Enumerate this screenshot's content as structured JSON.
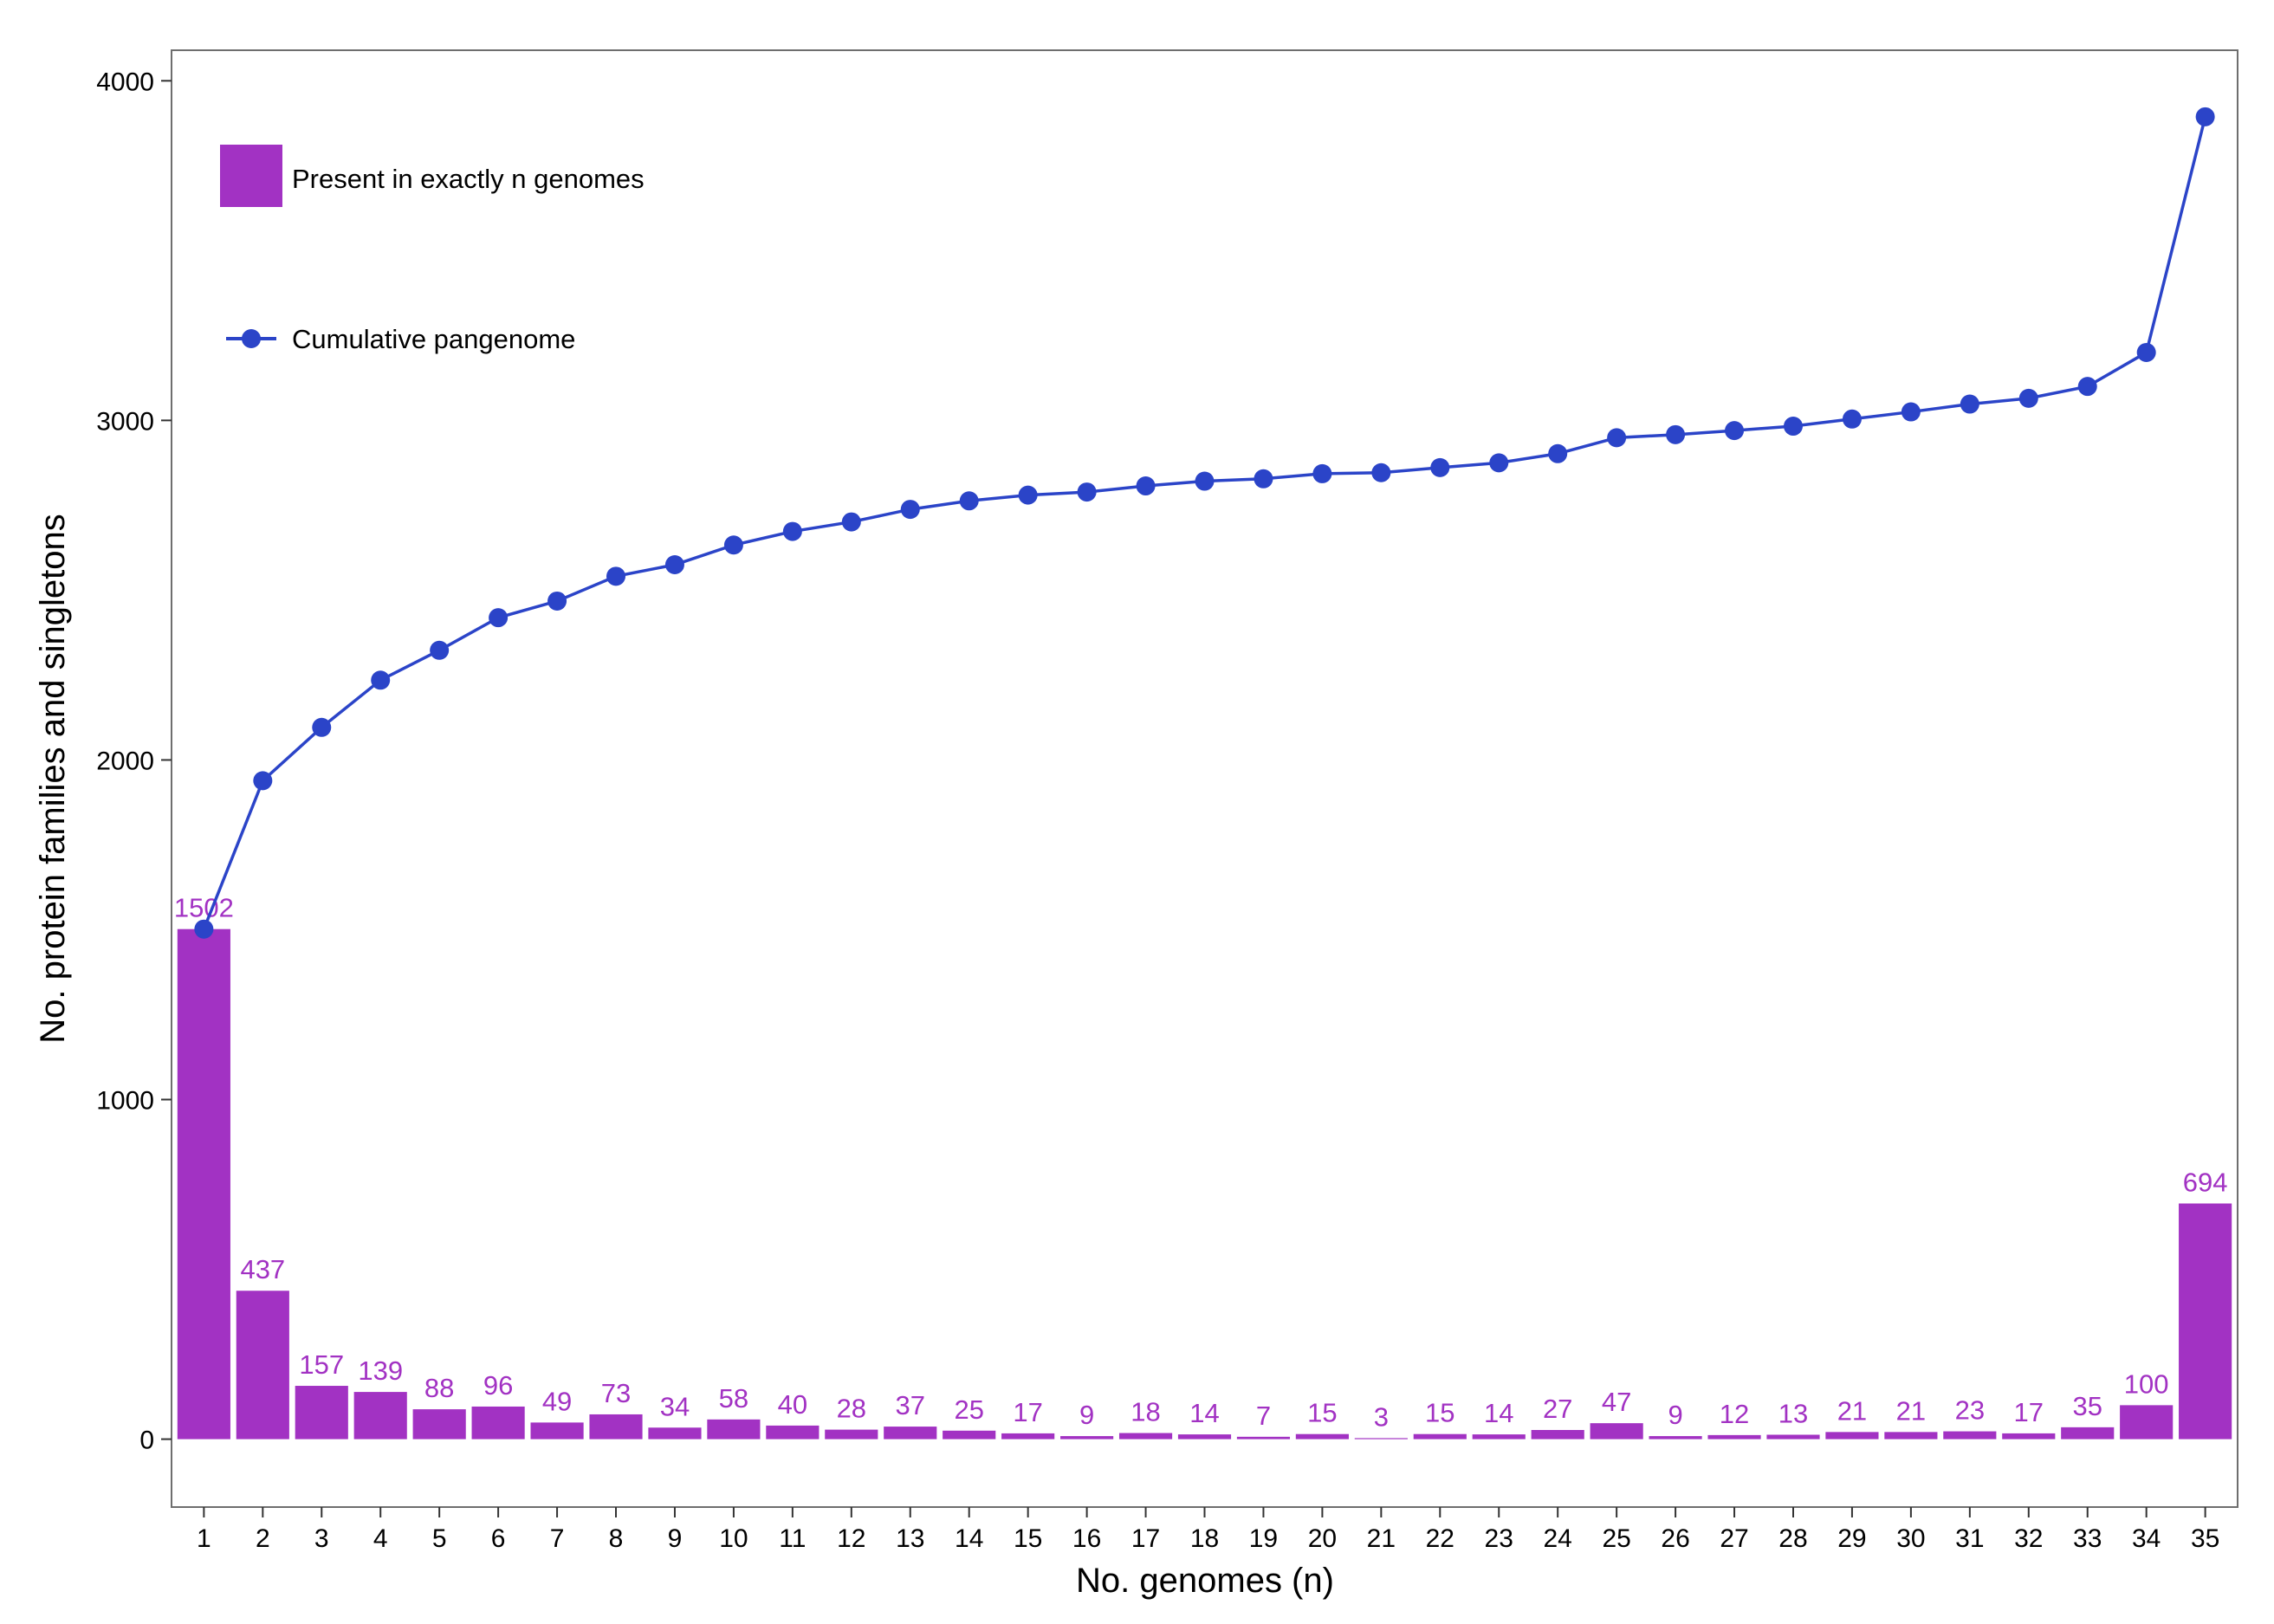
{
  "chart_data": {
    "type": "bar",
    "xlabel": "No. genomes (n)",
    "ylabel": "No. protein families and singletons",
    "ylim": [
      -200,
      4090
    ],
    "xlim": [
      0.45,
      35.55
    ],
    "yticks": [
      0,
      1000,
      2000,
      3000,
      4000
    ],
    "categories": [
      1,
      2,
      3,
      4,
      5,
      6,
      7,
      8,
      9,
      10,
      11,
      12,
      13,
      14,
      15,
      16,
      17,
      18,
      19,
      20,
      21,
      22,
      23,
      24,
      25,
      26,
      27,
      28,
      29,
      30,
      31,
      32,
      33,
      34,
      35
    ],
    "grid": false,
    "legend_placement": "top-left",
    "series": [
      {
        "name": "Present in exactly n genomes",
        "kind": "bar",
        "color": "#a232c3",
        "values": [
          1502,
          437,
          157,
          139,
          88,
          96,
          49,
          73,
          34,
          58,
          40,
          28,
          37,
          25,
          17,
          9,
          18,
          14,
          7,
          15,
          3,
          15,
          14,
          27,
          47,
          9,
          12,
          13,
          21,
          21,
          23,
          17,
          35,
          100,
          694
        ]
      },
      {
        "name": "Cumulative pangenome",
        "kind": "line",
        "color": "#2b44c8",
        "values": [
          1502,
          1939,
          2096,
          2235,
          2323,
          2419,
          2468,
          2541,
          2575,
          2633,
          2673,
          2701,
          2738,
          2763,
          2780,
          2789,
          2807,
          2821,
          2828,
          2843,
          2846,
          2861,
          2875,
          2902,
          2949,
          2958,
          2970,
          2983,
          3004,
          3025,
          3048,
          3065,
          3100,
          3200,
          3894
        ]
      }
    ]
  }
}
